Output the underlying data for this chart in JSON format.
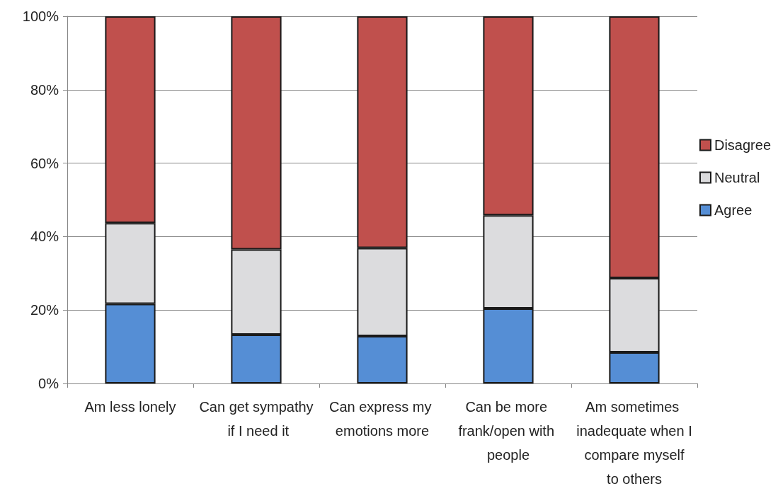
{
  "chart_data": {
    "type": "bar",
    "stacked": true,
    "categories": [
      "Am less lonely",
      "Can get sympathy if I need it",
      "Can express my emotions more",
      "Can be more frank/open with people",
      "Am sometimes inadequate when I compare myself to others"
    ],
    "series": [
      {
        "name": "Agree",
        "color": "#558ed5",
        "values": [
          21.7,
          13.3,
          12.9,
          20.4,
          8.5
        ]
      },
      {
        "name": "Neutral",
        "color": "#dcdcde",
        "values": [
          22.0,
          23.2,
          24.0,
          25.4,
          20.2
        ]
      },
      {
        "name": "Disagree",
        "color": "#c0504d",
        "values": [
          56.3,
          63.5,
          63.1,
          54.2,
          71.3
        ]
      }
    ],
    "ylim": [
      0,
      100
    ],
    "yticks": [
      {
        "value": 0,
        "label": "0%"
      },
      {
        "value": 20,
        "label": "20%"
      },
      {
        "value": 40,
        "label": "40%"
      },
      {
        "value": 60,
        "label": "60%"
      },
      {
        "value": 80,
        "label": "80%"
      },
      {
        "value": 100,
        "label": "100%"
      }
    ],
    "grid": "y",
    "legend": "right"
  }
}
